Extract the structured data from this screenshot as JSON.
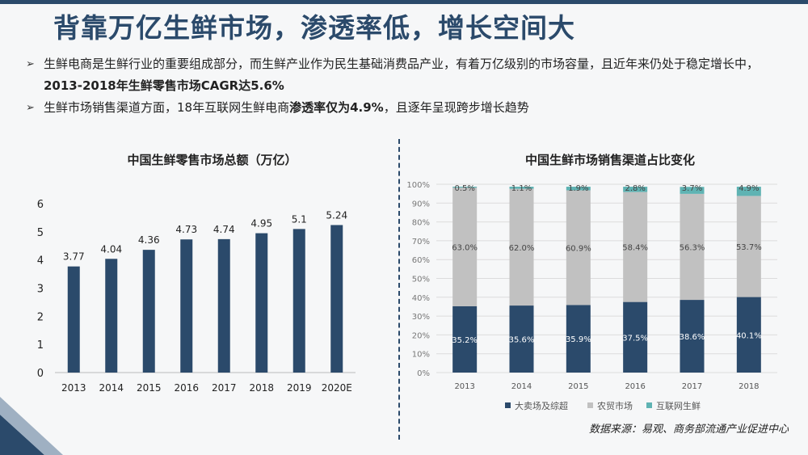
{
  "title": "背靠万亿生鲜市场，渗透率低，增长空间大",
  "bullets": [
    {
      "text_plain": "生鲜电商是生鲜行业的重要组成部分，而生鲜产业作为民生基础消费品产业，有着万亿级别的市场容量，且近年来仍处于稳定增长中，",
      "text_bold": "2013-2018年生鲜零售市场CAGR达5.6%",
      "text_after": ""
    },
    {
      "text_plain": "生鲜市场销售渠道方面，18年互联网生鲜电商",
      "text_bold": "渗透率仅为4.9%",
      "text_after": "，且逐年呈现跨步增长趋势"
    }
  ],
  "bullet_icon": "arrow-right-icon",
  "source": "数据来源：易观、商务部流通产业促进中心",
  "colors": {
    "title": "#2b4a6b",
    "bar": "#2b4a6b",
    "gray": "#c1c1c1",
    "teal": "#5fb3b3"
  },
  "chart_data": [
    {
      "type": "bar",
      "title": "中国生鲜零售市场总额（万亿）",
      "categories": [
        "2013",
        "2014",
        "2015",
        "2016",
        "2017",
        "2018",
        "2019",
        "2020E"
      ],
      "values": [
        3.77,
        4.04,
        4.36,
        4.73,
        4.74,
        4.95,
        5.1,
        5.24
      ],
      "value_labels": [
        "3.77",
        "4.04",
        "4.36",
        "4.73",
        "4.74",
        "4.95",
        "5.1",
        "5.24"
      ],
      "ylim": [
        0,
        6
      ],
      "yticks": [
        "0",
        "1",
        "2",
        "3",
        "4",
        "5",
        "6"
      ],
      "grid": false,
      "legend": "none"
    },
    {
      "type": "bar",
      "stacked": true,
      "title": "中国生鲜市场销售渠道占比变化",
      "categories": [
        "2013",
        "2014",
        "2015",
        "2016",
        "2017",
        "2018"
      ],
      "series": [
        {
          "name": "大卖场及综超",
          "values": [
            35.2,
            35.6,
            35.9,
            37.5,
            38.6,
            40.1
          ],
          "labels": [
            "35.2%",
            "35.6%",
            "35.9%",
            "37.5%",
            "38.6%",
            "40.1%"
          ],
          "color": "#2b4a6b"
        },
        {
          "name": "农贸市场",
          "values": [
            63.0,
            62.0,
            60.9,
            58.4,
            56.3,
            53.7
          ],
          "labels": [
            "63.0%",
            "62.0%",
            "60.9%",
            "58.4%",
            "56.3%",
            "53.7%"
          ],
          "color": "#c1c1c1"
        },
        {
          "name": "互联网生鲜",
          "values": [
            0.5,
            1.1,
            1.9,
            2.8,
            3.7,
            4.9
          ],
          "labels": [
            "0.5%",
            "1.1%",
            "1.9%",
            "2.8%",
            "3.7%",
            "4.9%"
          ],
          "color": "#5fb3b3"
        }
      ],
      "ylim": [
        0,
        100
      ],
      "yticks": [
        "0%",
        "10%",
        "20%",
        "30%",
        "40%",
        "50%",
        "60%",
        "70%",
        "80%",
        "90%",
        "100%"
      ],
      "grid": true,
      "legend": "bottom"
    }
  ]
}
